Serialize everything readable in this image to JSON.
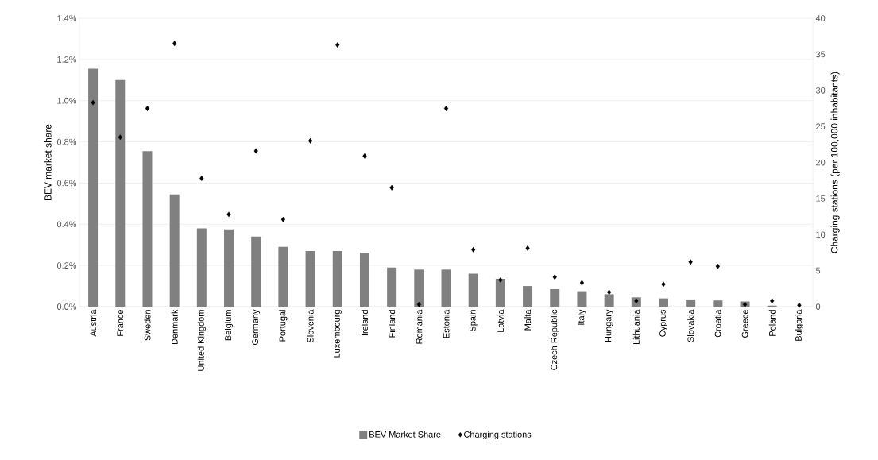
{
  "chart_data": {
    "type": "bar",
    "ylabel": "BEV market share",
    "y2label": "Charging stations (per 100,000 inhabitants)",
    "categories": [
      "Austria",
      "France",
      "Sweden",
      "Denmark",
      "United Kingdom",
      "Belgium",
      "Germany",
      "Portugal",
      "Slovenia",
      "Luxembourg",
      "Ireland",
      "Finland",
      "Romania",
      "Estonia",
      "Spain",
      "Latvia",
      "Malta",
      "Czech Republic",
      "Italy",
      "Hungary",
      "Lithuania",
      "Cyprus",
      "Slovakia",
      "Croatia",
      "Greece",
      "Poland",
      "Bulgaria"
    ],
    "series": [
      {
        "name": "BEV Market Share",
        "color": "#808080",
        "values": [
          1.155,
          1.1,
          0.755,
          0.545,
          0.38,
          0.375,
          0.34,
          0.29,
          0.27,
          0.27,
          0.26,
          0.19,
          0.18,
          0.18,
          0.16,
          0.135,
          0.1,
          0.085,
          0.075,
          0.06,
          0.045,
          0.04,
          0.035,
          0.03,
          0.025,
          0.005,
          0.0
        ]
      },
      {
        "name": "Charging stations",
        "type": "scatter",
        "axis": "y2",
        "color": "#000000",
        "marker": "diamond",
        "values": [
          28.3,
          23.5,
          27.5,
          36.5,
          17.8,
          12.8,
          21.6,
          12.1,
          23.0,
          36.3,
          20.9,
          16.5,
          0.3,
          27.5,
          7.9,
          3.7,
          8.1,
          4.1,
          3.3,
          2.0,
          0.8,
          3.1,
          6.2,
          5.6,
          0.3,
          0.8,
          0.2
        ]
      }
    ],
    "ylim": [
      0,
      1.4
    ],
    "yticks": [
      {
        "value": 0,
        "label": "0.0%"
      },
      {
        "value": 0.2,
        "label": "0.2%"
      },
      {
        "value": 0.4,
        "label": "0.4%"
      },
      {
        "value": 0.6,
        "label": "0.6%"
      },
      {
        "value": 0.8,
        "label": "0.8%"
      },
      {
        "value": 1.0,
        "label": "1.0%"
      },
      {
        "value": 1.2,
        "label": "1.2%"
      },
      {
        "value": 1.4,
        "label": "1.4%"
      }
    ],
    "y2lim": [
      0,
      40
    ],
    "y2ticks": [
      0,
      5,
      10,
      15,
      20,
      25,
      30,
      35,
      40
    ],
    "grid": "y",
    "legend": "bottom"
  }
}
